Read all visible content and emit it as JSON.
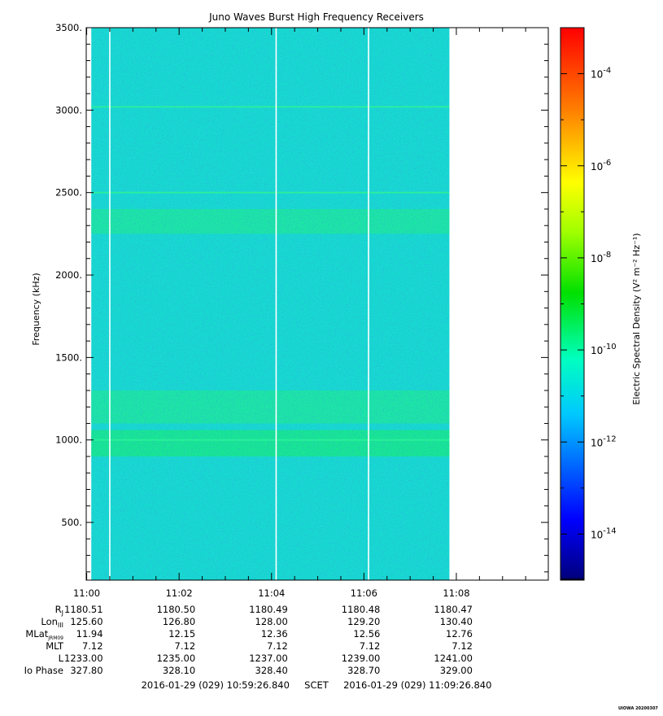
{
  "chart_data": {
    "type": "heatmap",
    "title": "Juno Waves Burst High Frequency Receivers",
    "ylabel": "Frequency (kHz)",
    "ylim": [
      150,
      3500
    ],
    "yticks": [
      {
        "value": 500,
        "label": "500."
      },
      {
        "value": 1000,
        "label": "1000."
      },
      {
        "value": 1500,
        "label": "1500."
      },
      {
        "value": 2000,
        "label": "2000."
      },
      {
        "value": 2500,
        "label": "2500."
      },
      {
        "value": 3000,
        "label": "3000."
      },
      {
        "value": 3500,
        "label": "3500."
      }
    ],
    "xlim_minutes": [
      10.99,
      20.99
    ],
    "xticks": [
      {
        "minute": 0,
        "label": "11:00"
      },
      {
        "minute": 2,
        "label": "11:02"
      },
      {
        "minute": 4,
        "label": "11:04"
      },
      {
        "minute": 6,
        "label": "11:06"
      },
      {
        "minute": 8,
        "label": "11:08"
      }
    ],
    "data_coverage_minutes": [
      0.1,
      7.85
    ],
    "data_gap_minutes": [
      0.5,
      4.1,
      6.1
    ],
    "background_level": "1e-11",
    "enhanced_bands_khz": [
      {
        "range": [
          900,
          1060
        ],
        "level": "1e-10"
      },
      {
        "range": [
          2250,
          2400
        ],
        "level": "5e-11"
      },
      {
        "range": [
          1100,
          1300
        ],
        "level": "4e-11"
      }
    ],
    "narrowband_lines_khz": [
      1000,
      2500,
      3020
    ],
    "colorbar": {
      "label": "Electric Spectral Density (V² m⁻² Hz⁻¹)",
      "log_min": -15,
      "log_max": -3,
      "ticks": [
        {
          "exp": -14,
          "label": "-14"
        },
        {
          "exp": -12,
          "label": "-12"
        },
        {
          "exp": -10,
          "label": "-10"
        },
        {
          "exp": -8,
          "label": "-8"
        },
        {
          "exp": -6,
          "label": "-6"
        },
        {
          "exp": -4,
          "label": "-4"
        }
      ]
    }
  },
  "ephemeris": {
    "rows": [
      {
        "label": "R",
        "sub": "J",
        "values": [
          "1180.51",
          "1180.50",
          "1180.49",
          "1180.48",
          "1180.47"
        ]
      },
      {
        "label": "Lon",
        "sub": "III",
        "values": [
          "125.60",
          "126.80",
          "128.00",
          "129.20",
          "130.40"
        ]
      },
      {
        "label": "MLat",
        "sub": "JRM09",
        "values": [
          "11.94",
          "12.15",
          "12.36",
          "12.56",
          "12.76"
        ]
      },
      {
        "label": "MLT",
        "sub": "",
        "values": [
          "7.12",
          "7.12",
          "7.12",
          "7.12",
          "7.12"
        ]
      },
      {
        "label": "L",
        "sub": "",
        "values": [
          "1233.00",
          "1235.00",
          "1237.00",
          "1239.00",
          "1241.00"
        ]
      },
      {
        "label": "Io Phase",
        "sub": "",
        "values": [
          "327.80",
          "328.10",
          "328.40",
          "328.70",
          "329.00"
        ]
      }
    ]
  },
  "footer": {
    "time_range": "2016-01-29 (029) 10:59:26.840     SCET     2016-01-29 (029) 11:09:26.840",
    "credit": "UIOWA 20200307"
  }
}
